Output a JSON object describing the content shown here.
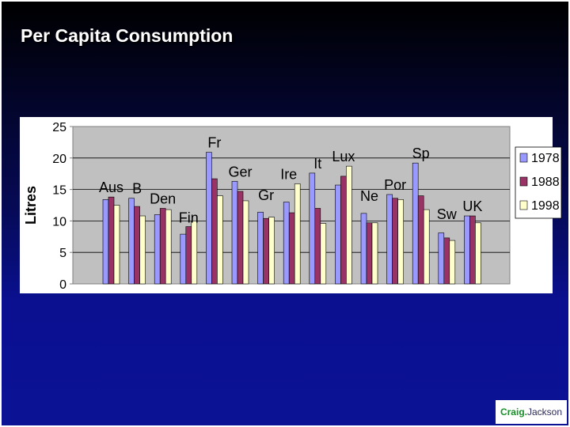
{
  "slide": {
    "title": "Per Capita Consumption",
    "logo": {
      "first": "Craig",
      "dot": ".",
      "second": "Jackson"
    }
  },
  "colors": {
    "plot_bg": "#c0c0c0",
    "series": [
      "#9999ff",
      "#993366",
      "#ffffcc"
    ]
  },
  "chart_data": {
    "type": "bar",
    "title": "",
    "xlabel": "",
    "ylabel": "Litres",
    "ylim": [
      0,
      25
    ],
    "yticks": [
      0,
      5,
      10,
      15,
      20,
      25
    ],
    "grid": true,
    "legend": "right",
    "categories": [
      "Aus",
      "B",
      "Den",
      "Fin",
      "Fr",
      "Ger",
      "Gr",
      "Ire",
      "It",
      "Lux",
      "Ne",
      "Por",
      "Sp",
      "Sw",
      "UK"
    ],
    "series": [
      {
        "name": "1978",
        "values": [
          13.4,
          13.6,
          11.0,
          7.9,
          20.9,
          16.3,
          11.4,
          13.0,
          17.6,
          15.7,
          11.2,
          14.2,
          19.2,
          8.1,
          10.8
        ]
      },
      {
        "name": "1988",
        "values": [
          13.8,
          12.3,
          12.0,
          9.1,
          16.7,
          14.7,
          10.4,
          11.3,
          12.0,
          17.1,
          9.7,
          13.6,
          14.0,
          7.3,
          10.8
        ]
      },
      {
        "name": "1998",
        "values": [
          12.5,
          10.8,
          11.8,
          10.0,
          14.0,
          13.2,
          10.6,
          15.9,
          9.6,
          18.7,
          9.7,
          13.4,
          11.8,
          6.9,
          9.7
        ]
      }
    ]
  }
}
